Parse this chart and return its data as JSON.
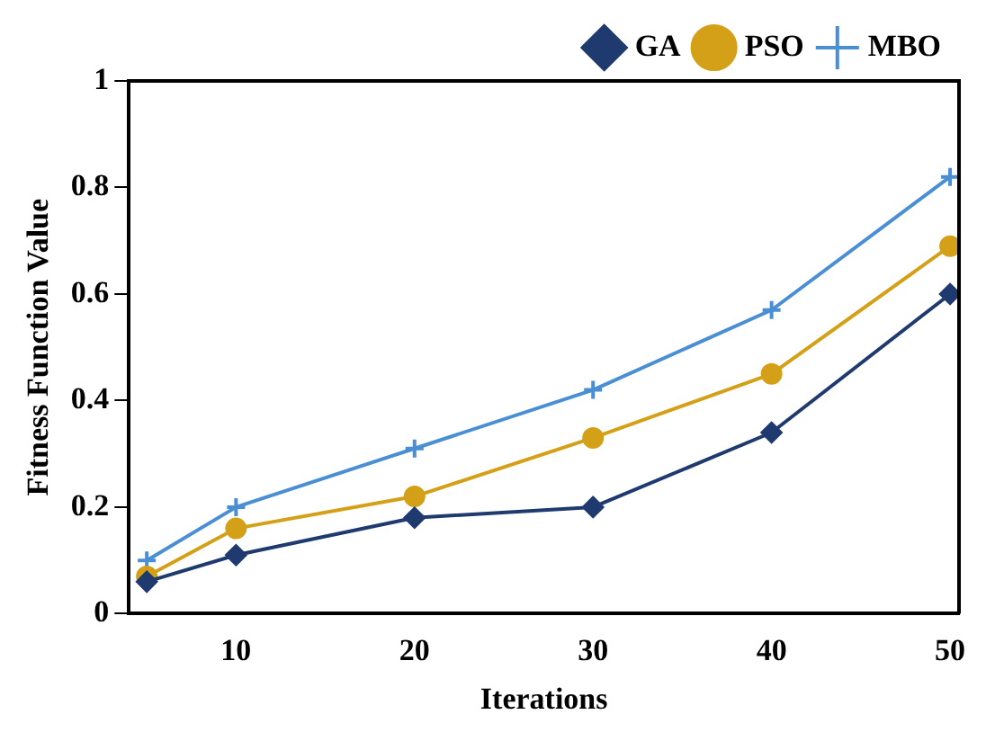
{
  "chart_data": {
    "type": "line",
    "xlabel": "Iterations",
    "ylabel": "Fitness Function Value",
    "xlim": [
      4,
      50.5
    ],
    "xticks": [
      10,
      20,
      30,
      40,
      50
    ],
    "ylim": [
      0,
      1
    ],
    "yticks": [
      0,
      0.2,
      0.4,
      0.6,
      0.8,
      1
    ],
    "x": [
      5,
      10,
      20,
      30,
      40,
      50
    ],
    "grid": false,
    "legend": "top right",
    "series": [
      {
        "name": "MBO",
        "color": "#4a8fd4",
        "marker": "cross",
        "values": [
          0.1,
          0.2,
          0.31,
          0.42,
          0.57,
          0.82
        ]
      },
      {
        "name": "PSO",
        "color": "#d4a017",
        "marker": "circle",
        "values": [
          0.07,
          0.16,
          0.22,
          0.33,
          0.45,
          0.69
        ]
      },
      {
        "name": "GA",
        "color": "#1f3a6e",
        "marker": "diamond",
        "values": [
          0.06,
          0.11,
          0.18,
          0.2,
          0.34,
          0.6
        ]
      }
    ]
  }
}
